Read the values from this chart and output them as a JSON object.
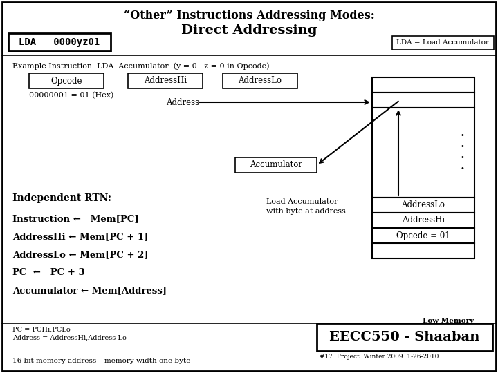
{
  "title_line1": "“Other” Instructions Addressing Modes:",
  "title_line2": "Direct Addressing",
  "lda_box_text": "LDA   0000yz01",
  "lda_legend_text": "LDA = Load Accumulator",
  "example_text": "Example Instruction  LDA  Accumulator  (y = 0   z = 0 in Opcode)",
  "opcode_label": "Opcode",
  "addresshi_label": "AddressHi",
  "addresslo_label": "AddressLo",
  "hex_text": "00000001 = 01 (Hex)",
  "address_label": "Address",
  "accumulator_label": "Accumulator",
  "independent_rtn": "Independent RTN:",
  "rtn_line1": "Instruction ←   Mem[PC]",
  "rtn_line2": "AddressHi ← Mem[PC + 1]",
  "rtn_line3": "AddressLo ← Mem[PC + 2]",
  "rtn_line4": "PC  ←   PC + 3",
  "rtn_line5": "Accumulator ← Mem[Address]",
  "pc_note1": "PC = PCHi,PCLo",
  "pc_note2": "Address = AddressHi,Address Lo",
  "bottom_text": "16 bit memory address – memory width one byte",
  "eecc_text": "EECC550 - Shaaban",
  "slide_info": "#17  Project  Winter 2009  1-26-2010",
  "load_acc_text1": "Load Accumulator",
  "load_acc_text2": "with byte at address",
  "mem_addresslo": "AddressLo",
  "mem_addresshi": "AddressHi",
  "mem_opcode": "Opcede = 01",
  "low_memory": "Low Memory",
  "bg_color": "#ffffff",
  "border_color": "#000000",
  "text_color": "#000000"
}
